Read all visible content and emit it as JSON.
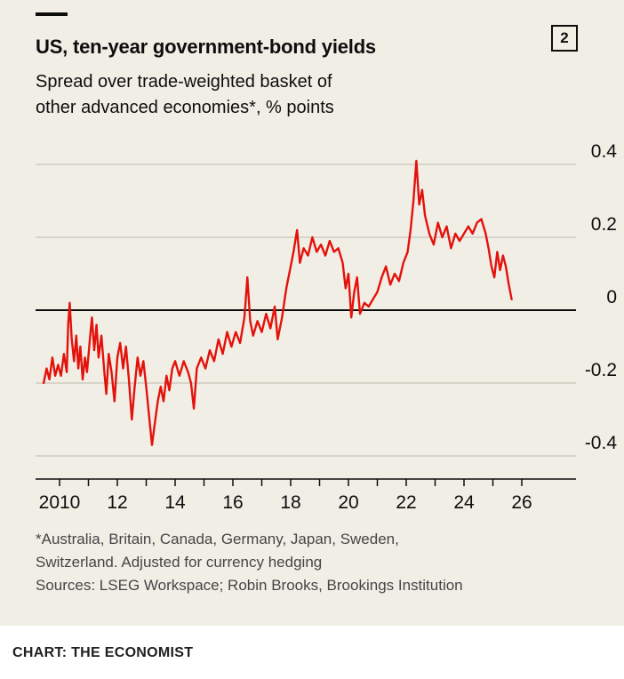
{
  "header": {
    "title": "US, ten-year government-bond yields",
    "subtitle_line1": "Spread over trade-weighted basket of",
    "subtitle_line2": "other advanced economies*, % points",
    "index_label": "2"
  },
  "footer": {
    "footnote_line1": "*Australia, Britain, Canada, Germany, Japan, Sweden,",
    "footnote_line2": "Switzerland. Adjusted for currency hedging",
    "sources": "Sources: LSEG Workspace; Robin Brooks, Brookings Institution",
    "caption": "CHART: THE ECONOMIST"
  },
  "colors": {
    "background": "#F1EEE6",
    "line": "#E3120B",
    "grid": "#BDB9AE",
    "axis": "#0D0D0D",
    "text": "#0D0D0D",
    "footnote_text": "#454545"
  },
  "chart_data": {
    "type": "line",
    "title": "US, ten-year government-bond yields",
    "subtitle": "Spread over trade-weighted basket of other advanced economies*, % points",
    "unit": "% points",
    "xlim": [
      2009.4,
      2026.8
    ],
    "ylim": [
      -0.45,
      0.45
    ],
    "y_ticks": [
      0.4,
      0.2,
      0,
      -0.2,
      -0.4
    ],
    "x_ticks": [
      {
        "year": 2010,
        "label": "2010"
      },
      {
        "year": 2012,
        "label": "12"
      },
      {
        "year": 2014,
        "label": "14"
      },
      {
        "year": 2016,
        "label": "16"
      },
      {
        "year": 2018,
        "label": "18"
      },
      {
        "year": 2020,
        "label": "20"
      },
      {
        "year": 2022,
        "label": "22"
      },
      {
        "year": 2024,
        "label": "24"
      },
      {
        "year": 2026,
        "label": "26"
      }
    ],
    "minor_x_tick_start": 2010,
    "minor_x_tick_end": 2026,
    "grid": "horizontal",
    "legend": "none",
    "series": [
      {
        "name": "US ten-year yield spread over trade-weighted basket of other advanced economies",
        "points": [
          [
            2009.45,
            -0.2
          ],
          [
            2009.55,
            -0.16
          ],
          [
            2009.65,
            -0.19
          ],
          [
            2009.75,
            -0.13
          ],
          [
            2009.85,
            -0.18
          ],
          [
            2009.95,
            -0.15
          ],
          [
            2010.05,
            -0.18
          ],
          [
            2010.15,
            -0.12
          ],
          [
            2010.25,
            -0.17
          ],
          [
            2010.3,
            -0.04
          ],
          [
            2010.35,
            0.02
          ],
          [
            2010.42,
            -0.08
          ],
          [
            2010.5,
            -0.14
          ],
          [
            2010.58,
            -0.07
          ],
          [
            2010.65,
            -0.16
          ],
          [
            2010.72,
            -0.1
          ],
          [
            2010.8,
            -0.19
          ],
          [
            2010.88,
            -0.13
          ],
          [
            2010.95,
            -0.17
          ],
          [
            2011.05,
            -0.08
          ],
          [
            2011.12,
            -0.02
          ],
          [
            2011.2,
            -0.11
          ],
          [
            2011.28,
            -0.04
          ],
          [
            2011.35,
            -0.13
          ],
          [
            2011.45,
            -0.07
          ],
          [
            2011.55,
            -0.17
          ],
          [
            2011.62,
            -0.23
          ],
          [
            2011.7,
            -0.12
          ],
          [
            2011.8,
            -0.17
          ],
          [
            2011.9,
            -0.25
          ],
          [
            2012.0,
            -0.13
          ],
          [
            2012.1,
            -0.09
          ],
          [
            2012.2,
            -0.16
          ],
          [
            2012.3,
            -0.1
          ],
          [
            2012.4,
            -0.19
          ],
          [
            2012.5,
            -0.3
          ],
          [
            2012.6,
            -0.21
          ],
          [
            2012.7,
            -0.13
          ],
          [
            2012.8,
            -0.18
          ],
          [
            2012.9,
            -0.14
          ],
          [
            2013.0,
            -0.21
          ],
          [
            2013.1,
            -0.29
          ],
          [
            2013.2,
            -0.37
          ],
          [
            2013.3,
            -0.31
          ],
          [
            2013.4,
            -0.25
          ],
          [
            2013.5,
            -0.21
          ],
          [
            2013.6,
            -0.25
          ],
          [
            2013.7,
            -0.18
          ],
          [
            2013.8,
            -0.22
          ],
          [
            2013.9,
            -0.16
          ],
          [
            2014.0,
            -0.14
          ],
          [
            2014.15,
            -0.18
          ],
          [
            2014.3,
            -0.14
          ],
          [
            2014.45,
            -0.17
          ],
          [
            2014.55,
            -0.2
          ],
          [
            2014.65,
            -0.27
          ],
          [
            2014.75,
            -0.16
          ],
          [
            2014.9,
            -0.13
          ],
          [
            2015.05,
            -0.16
          ],
          [
            2015.2,
            -0.11
          ],
          [
            2015.35,
            -0.14
          ],
          [
            2015.5,
            -0.08
          ],
          [
            2015.65,
            -0.12
          ],
          [
            2015.8,
            -0.06
          ],
          [
            2015.95,
            -0.1
          ],
          [
            2016.1,
            -0.06
          ],
          [
            2016.25,
            -0.09
          ],
          [
            2016.4,
            -0.02
          ],
          [
            2016.5,
            0.09
          ],
          [
            2016.6,
            -0.03
          ],
          [
            2016.7,
            -0.07
          ],
          [
            2016.85,
            -0.03
          ],
          [
            2017.0,
            -0.06
          ],
          [
            2017.15,
            -0.01
          ],
          [
            2017.3,
            -0.05
          ],
          [
            2017.45,
            0.01
          ],
          [
            2017.55,
            -0.08
          ],
          [
            2017.7,
            -0.02
          ],
          [
            2017.85,
            0.06
          ],
          [
            2018.0,
            0.12
          ],
          [
            2018.1,
            0.16
          ],
          [
            2018.22,
            0.22
          ],
          [
            2018.32,
            0.13
          ],
          [
            2018.45,
            0.17
          ],
          [
            2018.6,
            0.15
          ],
          [
            2018.75,
            0.2
          ],
          [
            2018.9,
            0.16
          ],
          [
            2019.05,
            0.18
          ],
          [
            2019.2,
            0.15
          ],
          [
            2019.35,
            0.19
          ],
          [
            2019.5,
            0.16
          ],
          [
            2019.65,
            0.17
          ],
          [
            2019.8,
            0.13
          ],
          [
            2019.9,
            0.06
          ],
          [
            2020.0,
            0.1
          ],
          [
            2020.1,
            -0.02
          ],
          [
            2020.2,
            0.05
          ],
          [
            2020.3,
            0.09
          ],
          [
            2020.4,
            -0.01
          ],
          [
            2020.55,
            0.02
          ],
          [
            2020.7,
            0.01
          ],
          [
            2020.85,
            0.03
          ],
          [
            2021.0,
            0.05
          ],
          [
            2021.15,
            0.09
          ],
          [
            2021.3,
            0.12
          ],
          [
            2021.45,
            0.07
          ],
          [
            2021.6,
            0.1
          ],
          [
            2021.75,
            0.08
          ],
          [
            2021.9,
            0.13
          ],
          [
            2022.05,
            0.16
          ],
          [
            2022.15,
            0.22
          ],
          [
            2022.25,
            0.3
          ],
          [
            2022.35,
            0.41
          ],
          [
            2022.45,
            0.29
          ],
          [
            2022.55,
            0.33
          ],
          [
            2022.65,
            0.26
          ],
          [
            2022.8,
            0.21
          ],
          [
            2022.95,
            0.18
          ],
          [
            2023.1,
            0.24
          ],
          [
            2023.25,
            0.2
          ],
          [
            2023.4,
            0.23
          ],
          [
            2023.55,
            0.17
          ],
          [
            2023.7,
            0.21
          ],
          [
            2023.85,
            0.19
          ],
          [
            2024.0,
            0.21
          ],
          [
            2024.15,
            0.23
          ],
          [
            2024.3,
            0.21
          ],
          [
            2024.45,
            0.24
          ],
          [
            2024.6,
            0.25
          ],
          [
            2024.75,
            0.21
          ],
          [
            2024.85,
            0.17
          ],
          [
            2024.95,
            0.12
          ],
          [
            2025.05,
            0.09
          ],
          [
            2025.15,
            0.16
          ],
          [
            2025.25,
            0.11
          ],
          [
            2025.35,
            0.15
          ],
          [
            2025.45,
            0.12
          ],
          [
            2025.55,
            0.07
          ],
          [
            2025.65,
            0.03
          ]
        ]
      }
    ]
  }
}
